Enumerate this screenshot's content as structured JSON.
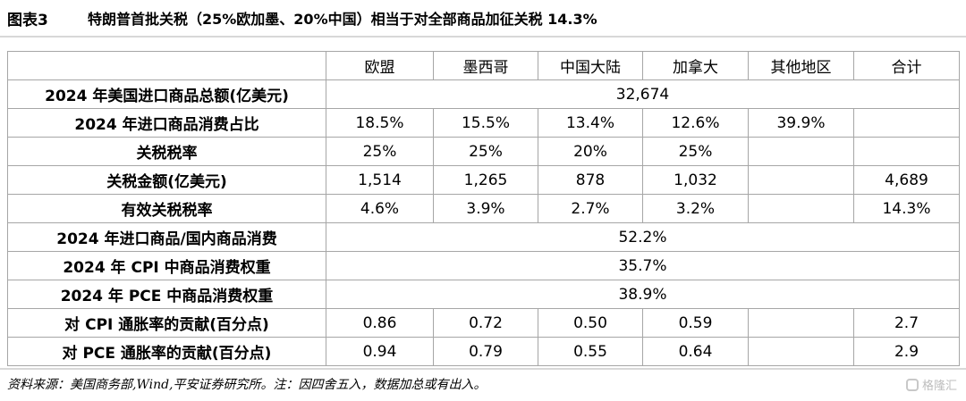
{
  "figure": {
    "label": "图表3",
    "title": "特朗普首批关税（25%欧加墨、20%中国）相当于对全部商品加征关税 14.3%"
  },
  "table": {
    "headers": [
      "",
      "欧盟",
      "墨西哥",
      "中国大陆",
      "加拿大",
      "其他地区",
      "合计"
    ],
    "rows": [
      {
        "label": "2024 年美国进口商品总额(亿美元)",
        "merged": "32,674"
      },
      {
        "label": "2024 年进口商品消费占比",
        "cells": [
          "18.5%",
          "15.5%",
          "13.4%",
          "12.6%",
          "39.9%",
          ""
        ]
      },
      {
        "label": "关税税率",
        "cells": [
          "25%",
          "25%",
          "20%",
          "25%",
          "",
          ""
        ]
      },
      {
        "label": "关税金额(亿美元)",
        "cells": [
          "1,514",
          "1,265",
          "878",
          "1,032",
          "",
          "4,689"
        ]
      },
      {
        "label": "有效关税税率",
        "cells": [
          "4.6%",
          "3.9%",
          "2.7%",
          "3.2%",
          "",
          "14.3%"
        ]
      },
      {
        "label": "2024 年进口商品/国内商品消费",
        "merged": "52.2%"
      },
      {
        "label": "2024 年 CPI 中商品消费权重",
        "merged": "35.7%"
      },
      {
        "label": "2024 年 PCE 中商品消费权重",
        "merged": "38.9%"
      },
      {
        "label": "对 CPI 通胀率的贡献(百分点)",
        "cells": [
          "0.86",
          "0.72",
          "0.50",
          "0.59",
          "",
          "2.7"
        ]
      },
      {
        "label": "对 PCE 通胀率的贡献(百分点)",
        "cells": [
          "0.94",
          "0.79",
          "0.55",
          "0.64",
          "",
          "2.9"
        ]
      }
    ]
  },
  "source": "资料来源：美国商务部,Wind,平安证券研究所。注：因四舍五入，数据加总或有出入。",
  "watermark": "格隆汇"
}
